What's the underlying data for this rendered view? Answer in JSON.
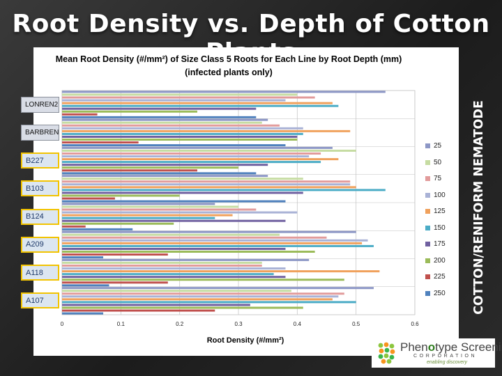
{
  "slide": {
    "title": "Root Density vs. Depth of Cotton Plants",
    "side_title": "COTTON/RENIFORM NEMATODE"
  },
  "logo": {
    "name_start": "Phen",
    "name_o": "o",
    "name_end": "type Screening",
    "corporation": "CORPORATION",
    "tagline": "enabling discovery"
  },
  "chart_data": {
    "type": "bar",
    "orientation": "horizontal",
    "title_line1": "Mean Root Density (#/mm²) of Size Class 5 Roots for Each Line by Root Depth (mm)",
    "title_line2": "(infected plants only)",
    "xlabel": "Root Density (#/mm²)",
    "ylabel": "",
    "xlim": [
      0,
      0.6
    ],
    "xticks": [
      "0",
      "0.1",
      "0.2",
      "0.3",
      "0.4",
      "0.5",
      "0.6"
    ],
    "grid": true,
    "legend_position": "right",
    "categories": [
      "LONREN2",
      "BARBREN",
      "B227",
      "B103",
      "B124",
      "A209",
      "A118",
      "A107"
    ],
    "series": [
      {
        "name": "25",
        "color": "#8d97c6",
        "values": [
          0.55,
          0.35,
          0.46,
          0.35,
          0.26,
          0.5,
          0.42,
          0.53
        ]
      },
      {
        "name": "50",
        "color": "#c6dca2",
        "values": [
          0.4,
          0.34,
          0.5,
          0.41,
          0.3,
          0.37,
          0.34,
          0.39
        ]
      },
      {
        "name": "75",
        "color": "#e29b9b",
        "values": [
          0.43,
          0.37,
          0.44,
          0.49,
          0.33,
          0.45,
          0.34,
          0.48
        ]
      },
      {
        "name": "100",
        "color": "#a9b2d6",
        "values": [
          0.38,
          0.41,
          0.42,
          0.49,
          0.4,
          0.52,
          0.38,
          0.47
        ]
      },
      {
        "name": "125",
        "color": "#f0a15c",
        "values": [
          0.46,
          0.49,
          0.47,
          0.5,
          0.29,
          0.51,
          0.54,
          0.46
        ]
      },
      {
        "name": "150",
        "color": "#4bacc6",
        "values": [
          0.47,
          0.41,
          0.44,
          0.55,
          0.26,
          0.53,
          0.36,
          0.5
        ]
      },
      {
        "name": "175",
        "color": "#7060a0",
        "values": [
          0.33,
          0.4,
          0.35,
          0.41,
          0.38,
          0.38,
          0.38,
          0.32
        ]
      },
      {
        "name": "200",
        "color": "#9bbb59",
        "values": [
          0.23,
          0.4,
          0.3,
          0.2,
          0.19,
          0.43,
          0.48,
          0.41
        ]
      },
      {
        "name": "225",
        "color": "#c0504d",
        "values": [
          0.06,
          0.13,
          0.23,
          0.09,
          0.04,
          0.18,
          0.18,
          0.26
        ]
      },
      {
        "name": "250",
        "color": "#4f81bd",
        "values": [
          0.33,
          0.38,
          0.33,
          0.38,
          0.12,
          0.07,
          0.08,
          0.07
        ]
      }
    ]
  }
}
